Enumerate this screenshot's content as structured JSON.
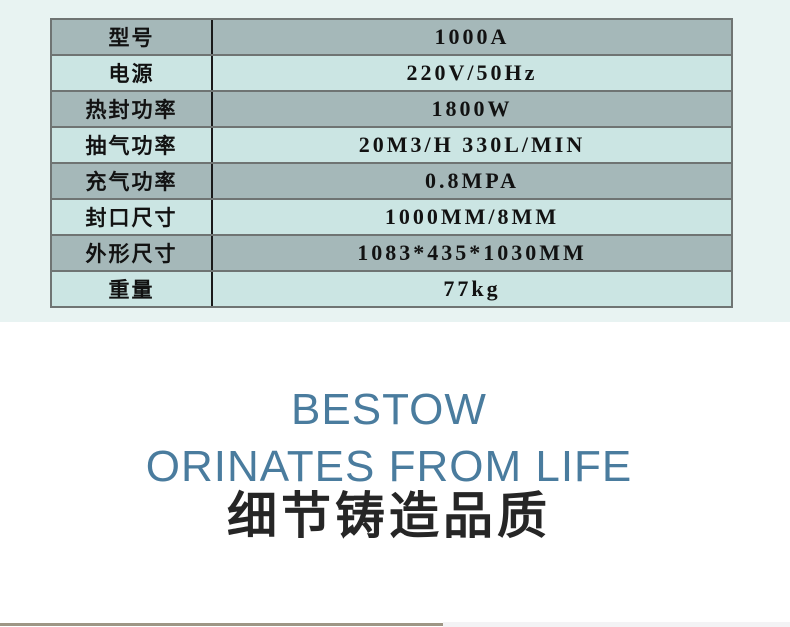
{
  "colors": {
    "page_background": "#ffffff",
    "top_band": "#e8f3f2",
    "row_dark": "#a5b8b9",
    "row_light": "#cbe5e3",
    "grid_line": "#6f7473",
    "column_divider": "#1a1a1a",
    "accent_blue": "#4a7c9e",
    "heading_dark": "#262626",
    "bottom_strip_left": "#9e9685",
    "bottom_strip_right": "#f3f3f5"
  },
  "spec_table": {
    "rows": [
      {
        "label": "型号",
        "value": "1000A"
      },
      {
        "label": "电源",
        "value": "220V/50Hz"
      },
      {
        "label": "热封功率",
        "value": "1800W"
      },
      {
        "label": "抽气功率",
        "value": "20M3/H 330L/MIN"
      },
      {
        "label": "充气功率",
        "value": "0.8MPA"
      },
      {
        "label": "封口尺寸",
        "value": "1000MM/8MM"
      },
      {
        "label": "外形尺寸",
        "value": "1083*435*1030MM"
      },
      {
        "label": "重量",
        "value": "77kg"
      }
    ]
  },
  "hero": {
    "line1": "BESTOW",
    "line2": "ORINATES FROM LIFE",
    "line3": "细节铸造品质"
  }
}
